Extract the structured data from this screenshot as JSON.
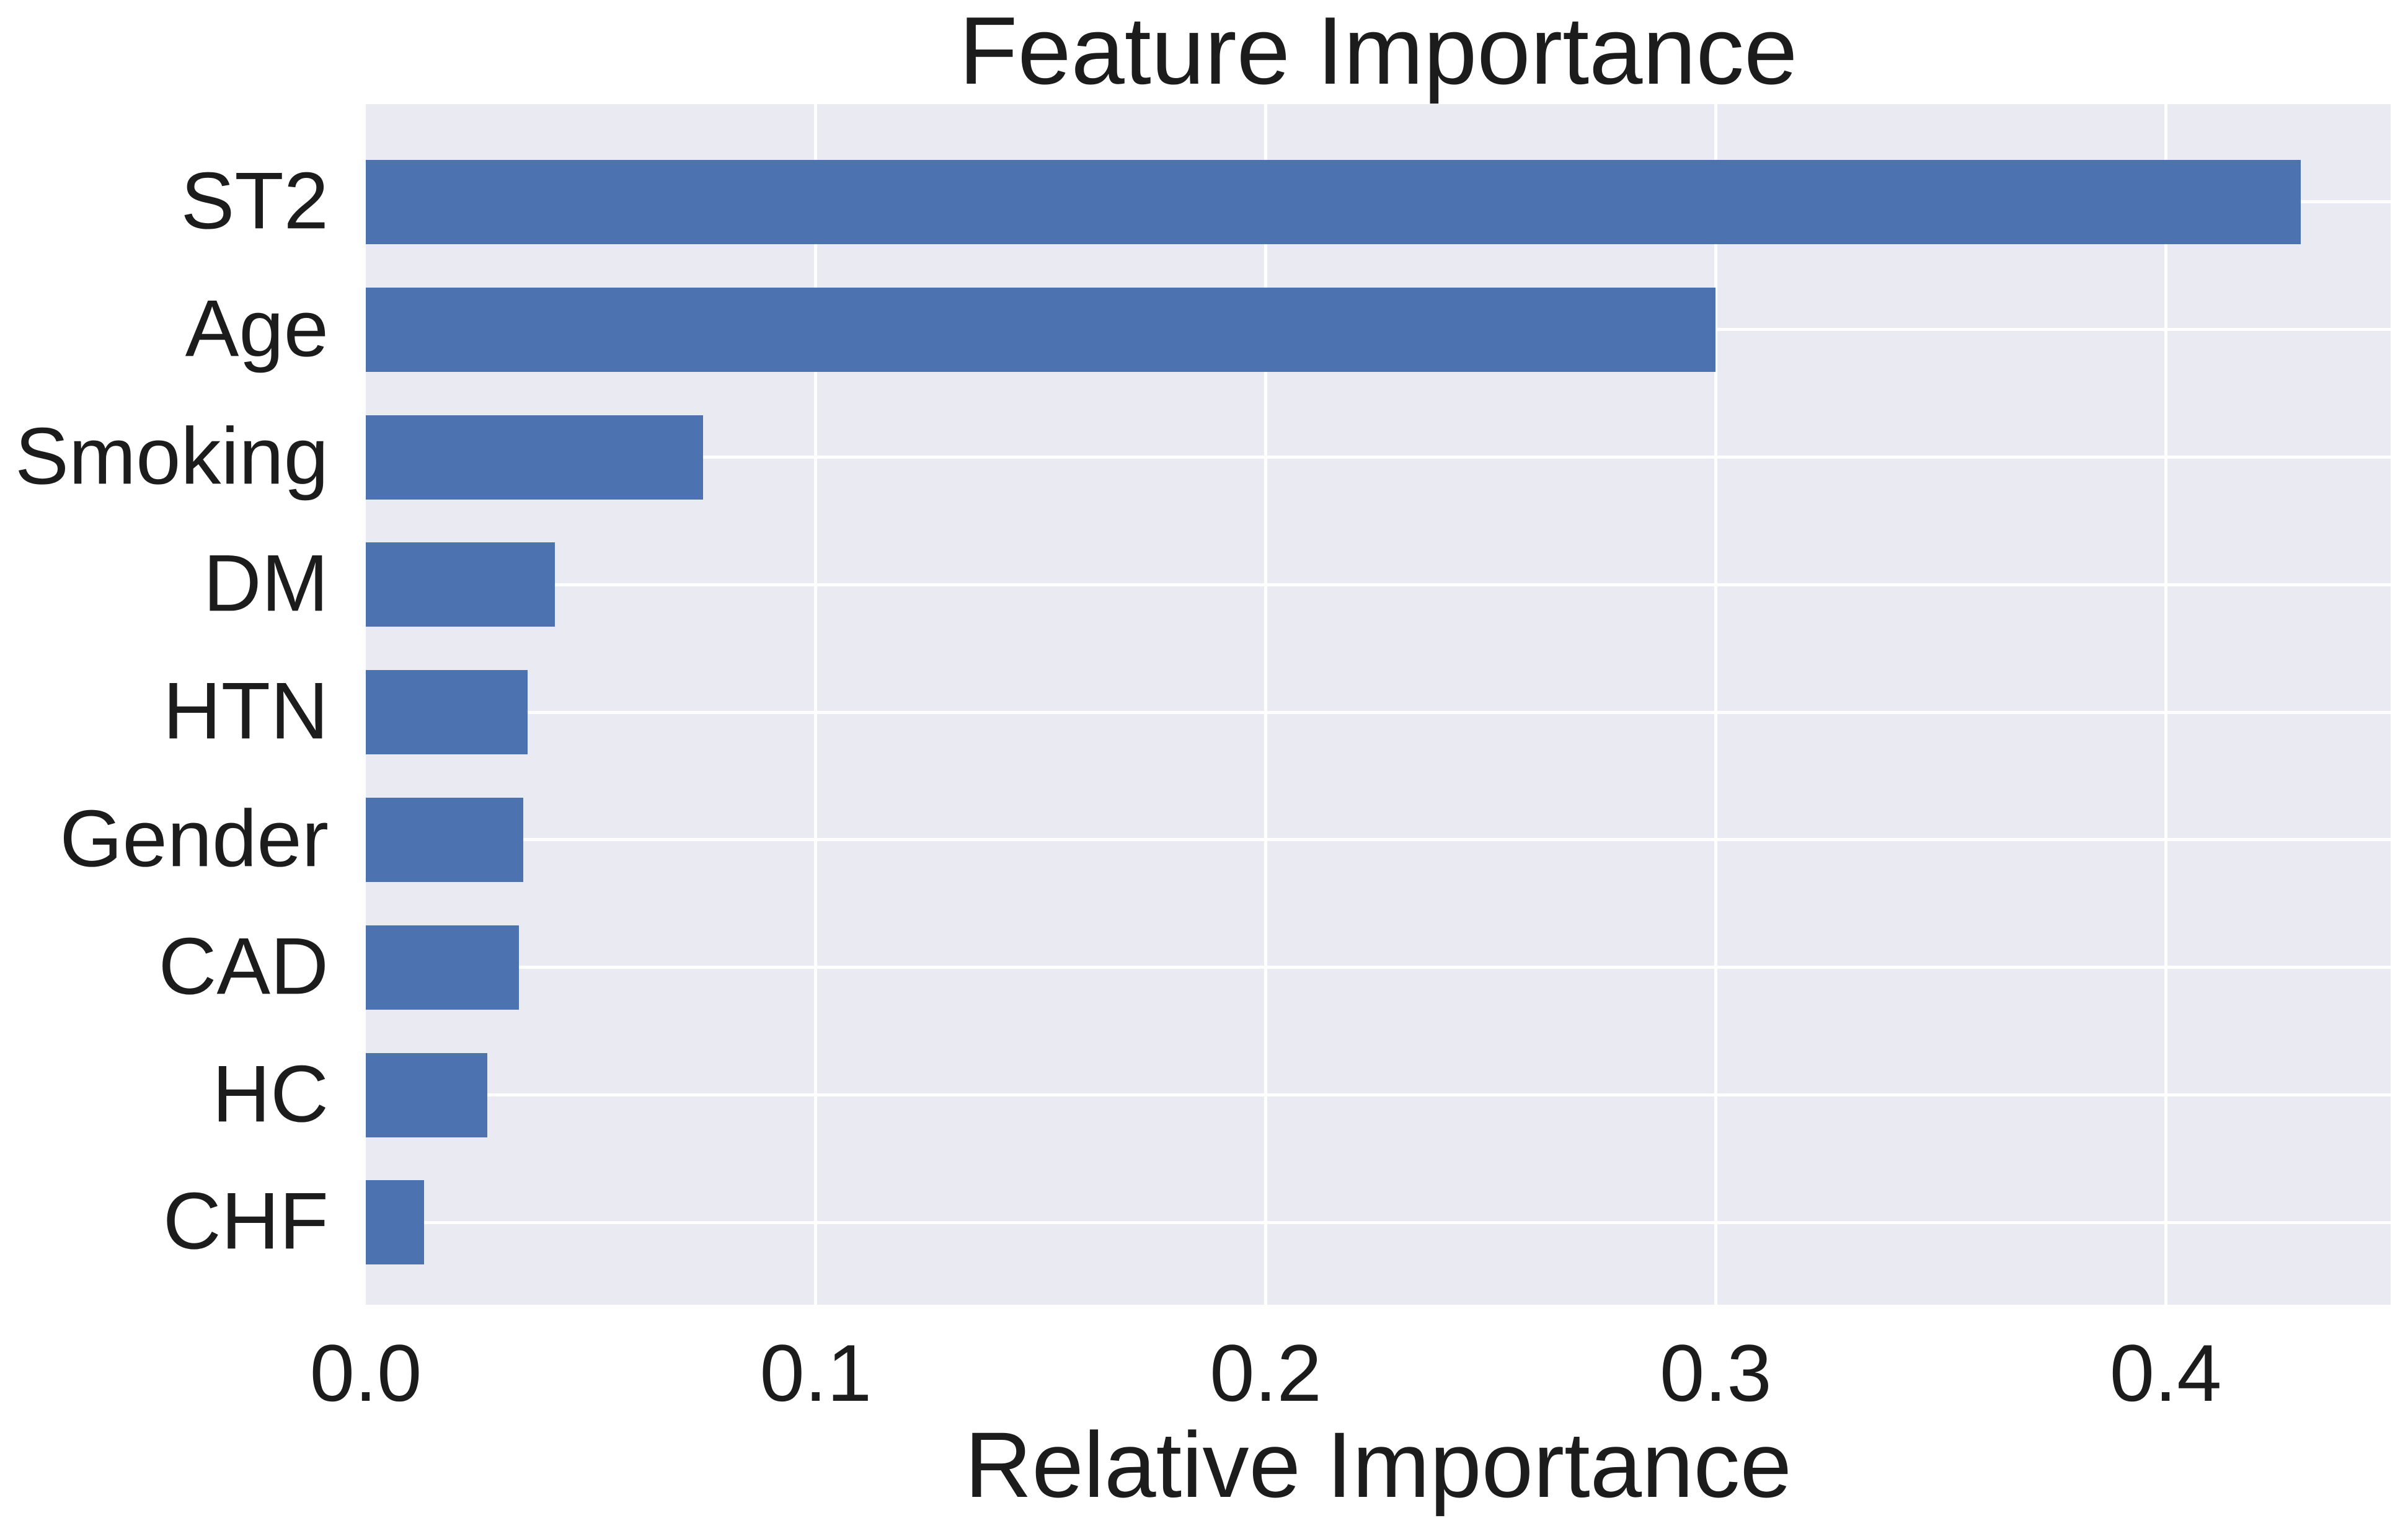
{
  "chart_data": {
    "type": "bar",
    "orientation": "horizontal",
    "title": "Feature Importance",
    "xlabel": "Relative Importance",
    "ylabel": "",
    "categories": [
      "ST2",
      "Age",
      "Smoking",
      "DM",
      "HTN",
      "Gender",
      "CAD",
      "HC",
      "CHF"
    ],
    "values": [
      0.43,
      0.3,
      0.075,
      0.042,
      0.036,
      0.035,
      0.034,
      0.027,
      0.013
    ],
    "xticks": [
      0.0,
      0.1,
      0.2,
      0.3,
      0.4
    ],
    "xtick_labels": [
      "0.0",
      "0.1",
      "0.2",
      "0.3",
      "0.4"
    ],
    "xlim": [
      0,
      0.45
    ],
    "grid": true,
    "grid_axis": "both",
    "legend": false,
    "bar_color": "#4C72B0",
    "plot_bg_color": "#EAEAF2",
    "grid_color": "#FFFFFF",
    "text_color": "#1c1c1c"
  }
}
